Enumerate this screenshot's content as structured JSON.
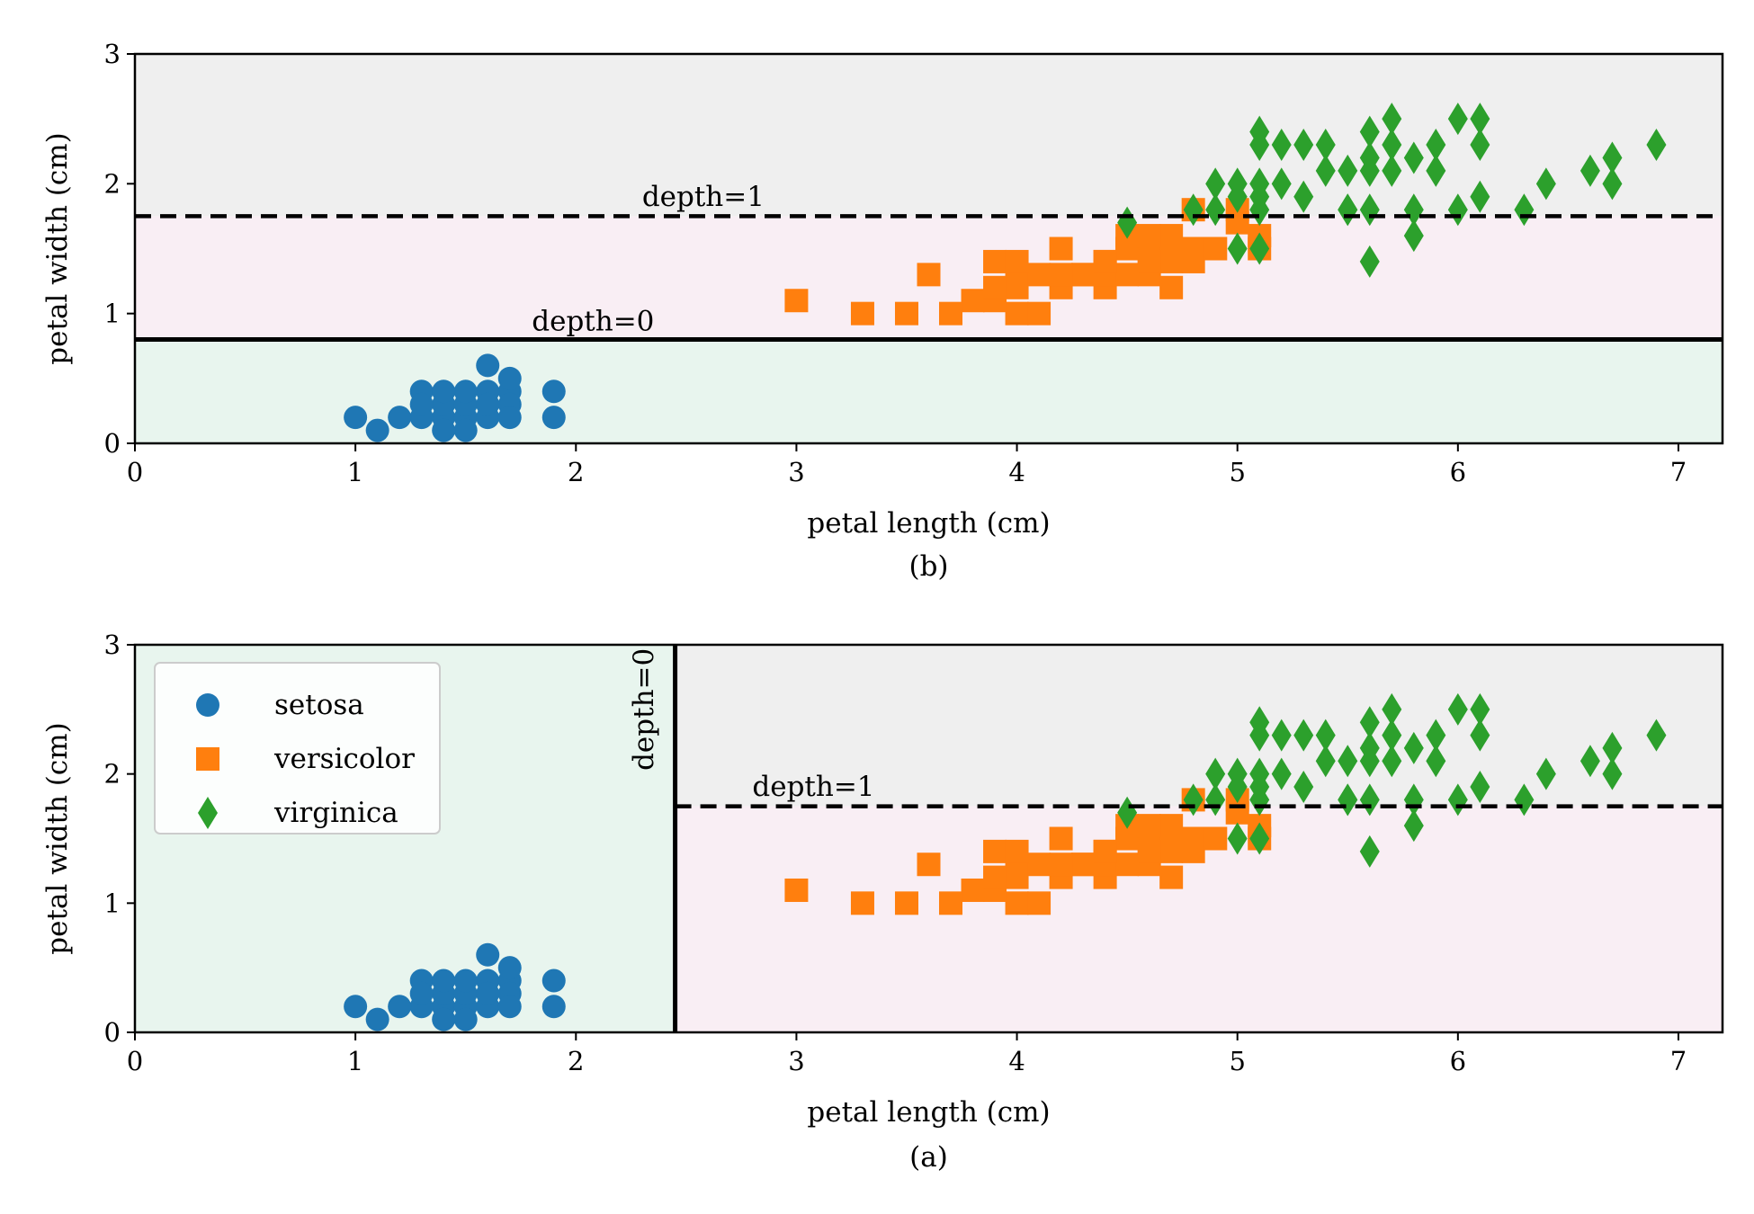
{
  "colors": {
    "setosa": "#1f77b4",
    "versicolor": "#ff7f0e",
    "virginica": "#2ca02c",
    "region_setosa": "#e8f5ee",
    "region_versicolor": "#f9eef4",
    "region_virginica": "#efefef"
  },
  "legend": {
    "placement": "upper-left",
    "entries": [
      {
        "label": "setosa",
        "marker": "circle",
        "color": "#1f77b4"
      },
      {
        "label": "versicolor",
        "marker": "square",
        "color": "#ff7f0e"
      },
      {
        "label": "virginica",
        "marker": "diamond",
        "color": "#2ca02c"
      }
    ]
  },
  "chart_data": [
    {
      "type": "scatter",
      "panel": "top",
      "caption": "(b)",
      "xlabel": "petal length (cm)",
      "ylabel": "petal width (cm)",
      "xlim": [
        0,
        7.2
      ],
      "ylim": [
        0,
        3
      ],
      "xticks": [
        0,
        1,
        2,
        3,
        4,
        5,
        6,
        7
      ],
      "yticks": [
        0,
        1,
        2,
        3
      ],
      "regions": [
        {
          "class": "setosa",
          "x": [
            0,
            7.2
          ],
          "y": [
            0,
            0.8
          ]
        },
        {
          "class": "versicolor",
          "x": [
            0,
            7.2
          ],
          "y": [
            0.8,
            1.75
          ]
        },
        {
          "class": "virginica",
          "x": [
            0,
            7.2
          ],
          "y": [
            1.75,
            3
          ]
        }
      ],
      "splits": [
        {
          "orientation": "horizontal",
          "value": 0.8,
          "style": "solid",
          "label": "depth=0",
          "label_x": 1.8,
          "label_y": 0.87
        },
        {
          "orientation": "horizontal",
          "value": 1.75,
          "style": "dashed",
          "label": "depth=1",
          "label_x": 2.3,
          "label_y": 1.83
        }
      ],
      "legend": false
    },
    {
      "type": "scatter",
      "panel": "bottom",
      "caption": "(a)",
      "xlabel": "petal length (cm)",
      "ylabel": "petal width (cm)",
      "xlim": [
        0,
        7.2
      ],
      "ylim": [
        0,
        3
      ],
      "xticks": [
        0,
        1,
        2,
        3,
        4,
        5,
        6,
        7
      ],
      "yticks": [
        0,
        1,
        2,
        3
      ],
      "regions": [
        {
          "class": "setosa",
          "x": [
            0,
            2.45
          ],
          "y": [
            0,
            3
          ]
        },
        {
          "class": "versicolor",
          "x": [
            2.45,
            7.2
          ],
          "y": [
            0,
            1.75
          ]
        },
        {
          "class": "virginica",
          "x": [
            2.45,
            7.2
          ],
          "y": [
            1.75,
            3
          ]
        }
      ],
      "splits": [
        {
          "orientation": "vertical",
          "value": 2.45,
          "style": "solid",
          "label": "depth=0",
          "label_x": 2.35,
          "label_y": 2.5
        },
        {
          "orientation": "horizontal",
          "value": 1.75,
          "x_from": 2.45,
          "style": "dashed",
          "label": "depth=1",
          "label_x": 2.8,
          "label_y": 1.83
        }
      ],
      "legend": true
    }
  ],
  "series": [
    {
      "name": "setosa",
      "marker": "circle",
      "color": "#1f77b4",
      "points": [
        [
          1.4,
          0.2
        ],
        [
          1.3,
          0.2
        ],
        [
          1.5,
          0.2
        ],
        [
          1.7,
          0.4
        ],
        [
          1.4,
          0.3
        ],
        [
          1.5,
          0.1
        ],
        [
          1.1,
          0.1
        ],
        [
          1.2,
          0.2
        ],
        [
          1.3,
          0.4
        ],
        [
          1.7,
          0.3
        ],
        [
          1.5,
          0.3
        ],
        [
          1.9,
          0.2
        ],
        [
          1.6,
          0.2
        ],
        [
          1.6,
          0.4
        ],
        [
          1.4,
          0.1
        ],
        [
          1.0,
          0.2
        ],
        [
          1.7,
          0.5
        ],
        [
          1.9,
          0.4
        ],
        [
          1.6,
          0.6
        ],
        [
          1.5,
          0.4
        ],
        [
          1.4,
          0.4
        ],
        [
          1.7,
          0.2
        ],
        [
          1.3,
          0.3
        ],
        [
          1.6,
          0.3
        ]
      ]
    },
    {
      "name": "versicolor",
      "marker": "square",
      "color": "#ff7f0e",
      "points": [
        [
          4.7,
          1.4
        ],
        [
          4.5,
          1.5
        ],
        [
          4.9,
          1.5
        ],
        [
          4.0,
          1.3
        ],
        [
          4.6,
          1.5
        ],
        [
          3.3,
          1.0
        ],
        [
          4.6,
          1.3
        ],
        [
          3.9,
          1.4
        ],
        [
          3.5,
          1.0
        ],
        [
          4.2,
          1.5
        ],
        [
          4.0,
          1.0
        ],
        [
          4.7,
          1.6
        ],
        [
          3.6,
          1.3
        ],
        [
          4.4,
          1.4
        ],
        [
          4.5,
          1.5
        ],
        [
          4.1,
          1.0
        ],
        [
          3.9,
          1.1
        ],
        [
          4.8,
          1.8
        ],
        [
          4.0,
          1.2
        ],
        [
          4.3,
          1.3
        ],
        [
          4.8,
          1.4
        ],
        [
          5.0,
          1.7
        ],
        [
          3.8,
          1.1
        ],
        [
          3.7,
          1.0
        ],
        [
          3.0,
          1.1
        ],
        [
          5.1,
          1.6
        ],
        [
          4.4,
          1.2
        ],
        [
          4.2,
          1.2
        ],
        [
          4.1,
          1.3
        ],
        [
          4.5,
          1.6
        ],
        [
          4.7,
          1.5
        ],
        [
          4.4,
          1.3
        ],
        [
          4.0,
          1.4
        ],
        [
          3.9,
          1.2
        ],
        [
          4.6,
          1.4
        ],
        [
          4.8,
          1.5
        ],
        [
          4.9,
          1.5
        ],
        [
          5.0,
          1.8
        ],
        [
          4.3,
          1.3
        ],
        [
          4.2,
          1.3
        ],
        [
          4.7,
          1.2
        ],
        [
          4.6,
          1.6
        ],
        [
          4.5,
          1.3
        ],
        [
          4.4,
          1.4
        ],
        [
          5.1,
          1.5
        ]
      ]
    },
    {
      "name": "virginica",
      "marker": "diamond",
      "color": "#2ca02c",
      "points": [
        [
          6.0,
          2.5
        ],
        [
          5.1,
          1.9
        ],
        [
          5.9,
          2.1
        ],
        [
          5.6,
          1.8
        ],
        [
          5.8,
          2.2
        ],
        [
          6.6,
          2.1
        ],
        [
          4.5,
          1.7
        ],
        [
          6.3,
          1.8
        ],
        [
          5.8,
          1.8
        ],
        [
          6.1,
          2.5
        ],
        [
          5.1,
          2.0
        ],
        [
          5.3,
          1.9
        ],
        [
          5.5,
          2.1
        ],
        [
          5.0,
          2.0
        ],
        [
          5.1,
          2.4
        ],
        [
          5.3,
          2.3
        ],
        [
          5.5,
          1.8
        ],
        [
          6.7,
          2.2
        ],
        [
          6.9,
          2.3
        ],
        [
          5.0,
          1.5
        ],
        [
          5.7,
          2.3
        ],
        [
          4.9,
          2.0
        ],
        [
          6.7,
          2.0
        ],
        [
          4.9,
          1.8
        ],
        [
          5.7,
          2.1
        ],
        [
          6.0,
          1.8
        ],
        [
          4.8,
          1.8
        ],
        [
          5.8,
          1.6
        ],
        [
          6.1,
          1.9
        ],
        [
          6.4,
          2.0
        ],
        [
          5.6,
          2.2
        ],
        [
          5.1,
          1.5
        ],
        [
          5.6,
          1.4
        ],
        [
          6.1,
          2.3
        ],
        [
          5.6,
          2.4
        ],
        [
          5.5,
          1.8
        ],
        [
          5.4,
          2.1
        ],
        [
          5.2,
          2.3
        ],
        [
          5.9,
          2.3
        ],
        [
          5.7,
          2.5
        ],
        [
          5.2,
          2.0
        ],
        [
          5.4,
          2.3
        ],
        [
          5.1,
          1.8
        ],
        [
          5.6,
          2.1
        ],
        [
          5.1,
          2.3
        ],
        [
          5.0,
          1.9
        ]
      ]
    }
  ]
}
